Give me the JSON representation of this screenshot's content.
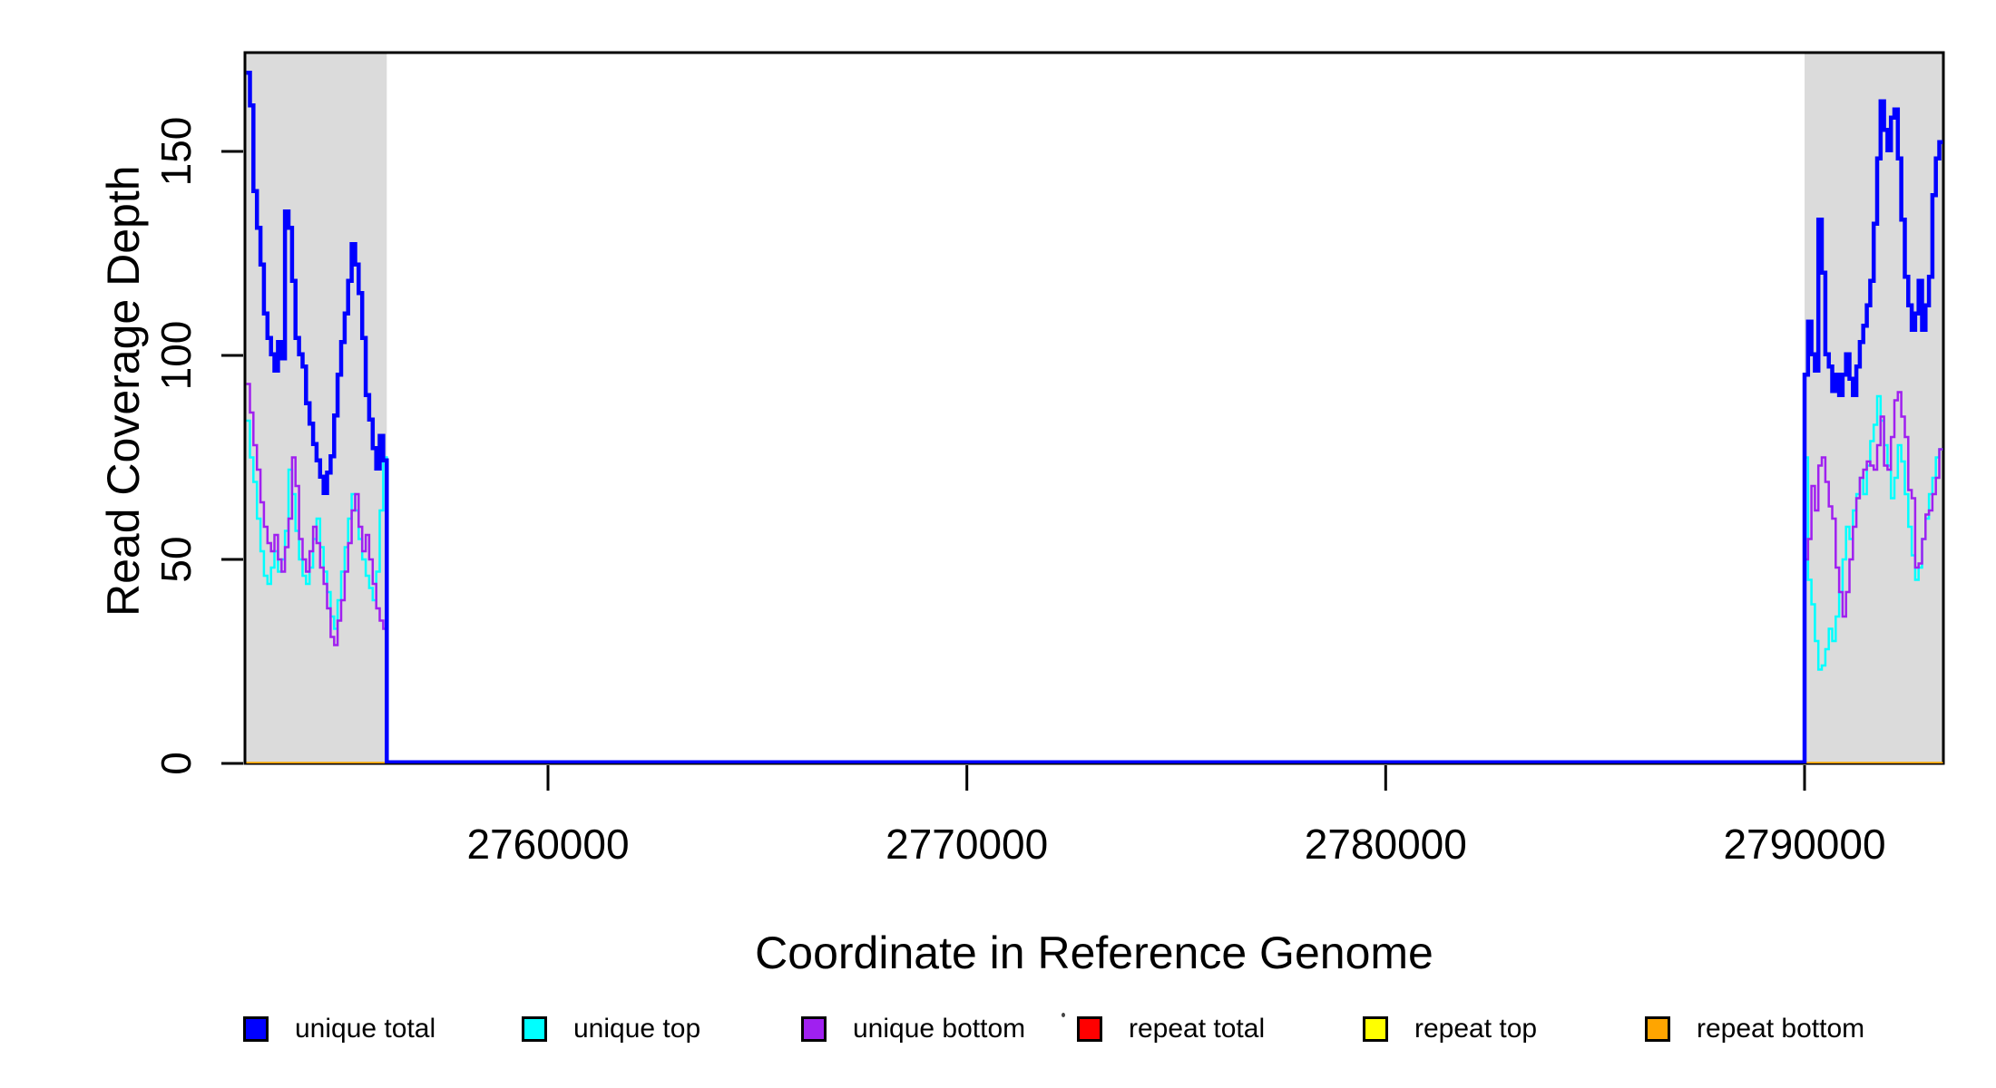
{
  "chart_data": {
    "type": "line",
    "subtype": "step",
    "title": "",
    "xlabel": "Coordinate in Reference Genome",
    "ylabel": "Read Coverage Depth",
    "x_range": [
      2752800,
      2793300
    ],
    "y_range": [
      0,
      174
    ],
    "grid": false,
    "background": "#FFFFFF",
    "plot_border": true,
    "x_ticks": [
      {
        "value": 2760000,
        "label": "2760000"
      },
      {
        "value": 2770000,
        "label": "2770000"
      },
      {
        "value": 2780000,
        "label": "2780000"
      },
      {
        "value": 2790000,
        "label": "2790000"
      }
    ],
    "y_ticks": [
      {
        "value": 0,
        "label": "0"
      },
      {
        "value": 50,
        "label": "50"
      },
      {
        "value": 100,
        "label": "100"
      },
      {
        "value": 150,
        "label": "150"
      }
    ],
    "shaded_regions": [
      {
        "x0": 2752800,
        "x1": 2756150,
        "color": "#DBDBDB"
      },
      {
        "x0": 2790000,
        "x1": 2793300,
        "color": "#DBDBDB"
      }
    ],
    "legend": {
      "position": "bottom",
      "entries": [
        {
          "label": "unique total",
          "color": "#0000FF"
        },
        {
          "label": "unique top",
          "color": "#00FFFF"
        },
        {
          "label": "unique bottom",
          "color": "#A020F0"
        },
        {
          "label": "repeat total",
          "color": "#FF0000"
        },
        {
          "label": "repeat top",
          "color": "#FFFF00"
        },
        {
          "label": "repeat bottom",
          "color": "#FFA500"
        }
      ]
    },
    "series": [
      {
        "name": "repeat total",
        "color": "#FF0000",
        "lwd": 3,
        "segments": [
          {
            "x0": 2752800,
            "dx": 40500,
            "values": [
              0,
              0
            ]
          }
        ]
      },
      {
        "name": "repeat top",
        "color": "#FFFF00",
        "lwd": 3,
        "segments": [
          {
            "x0": 2752800,
            "dx": 40500,
            "values": [
              0,
              0
            ]
          }
        ]
      },
      {
        "name": "repeat bottom",
        "color": "#FFA500",
        "lwd": 3.5,
        "segments": [
          {
            "x0": 2752800,
            "dx": 40500,
            "values": [
              0,
              0
            ]
          }
        ]
      },
      {
        "name": "unique top",
        "color": "#00FFFF",
        "lwd": 2.5,
        "segments": [
          {
            "x0": 2752800,
            "dx": 83.75,
            "values": [
              84,
              75,
              69,
              60,
              52,
              46,
              44,
              48,
              52,
              47,
              50,
              57,
              72,
              66,
              57,
              50,
              46,
              44,
              48,
              55,
              60,
              53,
              47,
              42,
              36,
              33,
              40,
              47,
              53,
              60,
              66,
              62,
              55,
              50,
              46,
              43,
              40,
              47,
              62,
              75
            ]
          },
          {
            "x0": 2756150,
            "dx": 1,
            "values": [
              0
            ]
          },
          {
            "x0": 2790000,
            "dx": 82.5,
            "values": [
              75,
              45,
              39,
              30,
              23,
              24,
              28,
              33,
              30,
              36,
              42,
              50,
              58,
              55,
              62,
              66,
              70,
              66,
              73,
              79,
              83,
              90,
              84,
              78,
              73,
              65,
              70,
              78,
              74,
              66,
              58,
              51,
              45,
              48,
              55,
              60,
              66,
              70,
              75,
              77
            ]
          }
        ]
      },
      {
        "name": "unique bottom",
        "color": "#A020F0",
        "lwd": 2.5,
        "segments": [
          {
            "x0": 2752800,
            "dx": 83.75,
            "values": [
              93,
              86,
              78,
              72,
              64,
              58,
              54,
              52,
              56,
              50,
              47,
              53,
              60,
              75,
              68,
              55,
              50,
              47,
              52,
              58,
              54,
              48,
              44,
              38,
              31,
              29,
              35,
              40,
              47,
              54,
              62,
              66,
              58,
              52,
              56,
              50,
              44,
              38,
              35,
              33
            ]
          },
          {
            "x0": 2756150,
            "dx": 1,
            "values": [
              0
            ]
          },
          {
            "x0": 2790000,
            "dx": 82.5,
            "values": [
              50,
              55,
              68,
              62,
              73,
              75,
              69,
              63,
              60,
              48,
              42,
              36,
              42,
              50,
              58,
              65,
              70,
              72,
              74,
              73,
              72,
              78,
              85,
              73,
              72,
              80,
              89,
              91,
              85,
              80,
              67,
              65,
              48,
              49,
              55,
              61,
              62,
              66,
              70,
              77
            ]
          }
        ]
      },
      {
        "name": "unique total",
        "color": "#0000FF",
        "lwd": 4.5,
        "segments": [
          {
            "x0": 2752800,
            "dx": 83.75,
            "values": [
              169,
              161,
              140,
              131,
              122,
              110,
              104,
              100,
              96,
              103,
              99,
              135,
              131,
              118,
              104,
              100,
              97,
              88,
              83,
              78,
              74,
              70,
              66,
              71,
              75,
              85,
              95,
              103,
              110,
              118,
              127,
              122,
              115,
              104,
              90,
              84,
              77,
              72,
              80,
              74
            ]
          },
          {
            "x0": 2756150,
            "dx": 1,
            "values": [
              0
            ]
          },
          {
            "x0": 2790000,
            "dx": 82.5,
            "values": [
              95,
              108,
              100,
              96,
              133,
              120,
              100,
              97,
              91,
              95,
              90,
              95,
              100,
              94,
              90,
              97,
              103,
              107,
              112,
              118,
              132,
              148,
              162,
              155,
              150,
              158,
              160,
              148,
              133,
              119,
              112,
              106,
              110,
              118,
              106,
              112,
              119,
              139,
              148,
              152
            ]
          }
        ]
      }
    ]
  }
}
